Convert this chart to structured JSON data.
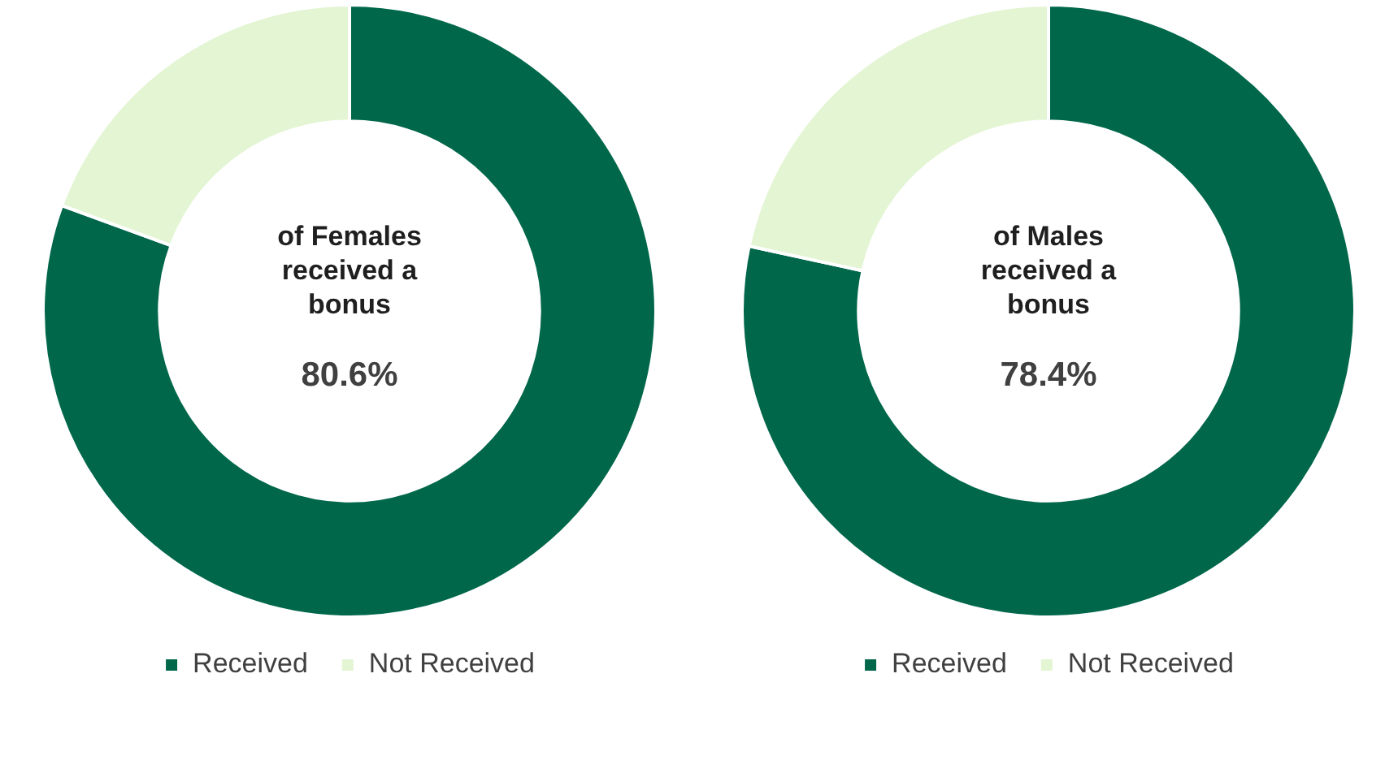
{
  "chart_data": [
    {
      "type": "donut",
      "title": "of Females received a bonus",
      "categories": [
        "Received",
        "Not Received"
      ],
      "values": [
        80.6,
        19.4
      ],
      "colors": [
        "#00674a",
        "#e3f5d3"
      ],
      "value_labels": [
        "80.6%",
        null
      ],
      "legend": "bottom"
    },
    {
      "type": "donut",
      "title": "of Males received a bonus",
      "categories": [
        "Received",
        "Not Received"
      ],
      "values": [
        78.4,
        21.6
      ],
      "colors": [
        "#00674a",
        "#e3f5d3"
      ],
      "value_labels": [
        "78.4%",
        null
      ],
      "legend": "bottom"
    }
  ]
}
